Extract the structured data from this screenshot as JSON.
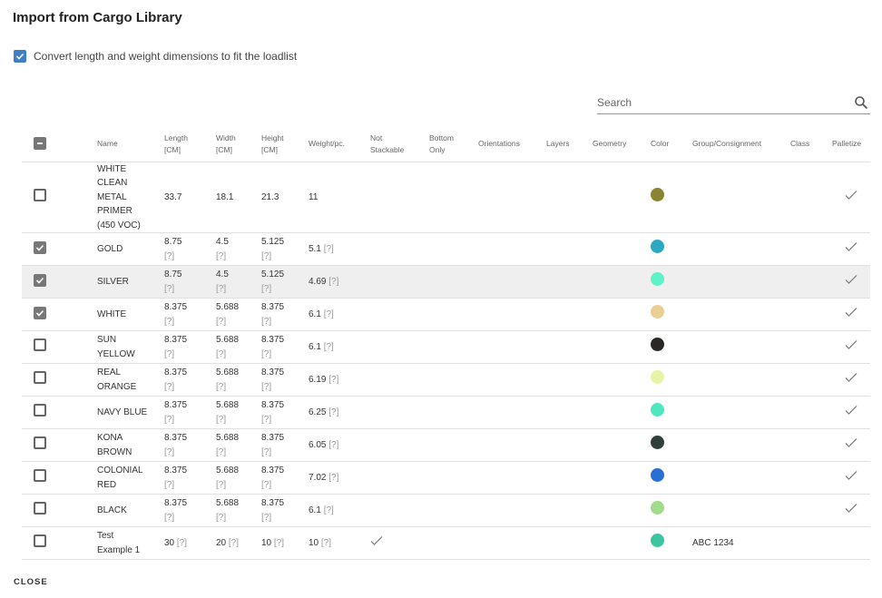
{
  "dialog": {
    "title": "Import from Cargo Library",
    "convert_label": "Convert length and weight dimensions to fit the loadlist",
    "convert_checked": true,
    "close_label": "CLOSE"
  },
  "search": {
    "placeholder": "Search",
    "icon": "search-icon"
  },
  "columns": [
    {
      "l1": "Name",
      "l2": ""
    },
    {
      "l1": "Length",
      "l2": "[CM]"
    },
    {
      "l1": "Width",
      "l2": "[CM]"
    },
    {
      "l1": "Height",
      "l2": "[CM]"
    },
    {
      "l1": "Weight/pc.",
      "l2": ""
    },
    {
      "l1": "Not",
      "l2": "Stackable"
    },
    {
      "l1": "Bottom",
      "l2": "Only"
    },
    {
      "l1": "Orientations",
      "l2": ""
    },
    {
      "l1": "Layers",
      "l2": ""
    },
    {
      "l1": "Geometry",
      "l2": ""
    },
    {
      "l1": "Color",
      "l2": ""
    },
    {
      "l1": "Group/Consignment",
      "l2": ""
    },
    {
      "l1": "Class",
      "l2": ""
    },
    {
      "l1": "Palletize",
      "l2": ""
    }
  ],
  "rows": [
    {
      "name": "WHITE CLEAN METAL PRIMER (450 VOC)",
      "length": "33.7",
      "width": "18.1",
      "height": "21.3",
      "weight": "11",
      "q": "",
      "checked": false,
      "not_stackable": false,
      "color": "#8a8433",
      "group": "",
      "palletize": true
    },
    {
      "name": "GOLD",
      "length": "8.75",
      "width": "4.5",
      "height": "5.125",
      "weight": "5.1",
      "q": "[?]",
      "checked": true,
      "not_stackable": false,
      "color": "#2aa8c4",
      "group": "",
      "palletize": true
    },
    {
      "name": "SILVER",
      "length": "8.75",
      "width": "4.5",
      "height": "5.125",
      "weight": "4.69",
      "q": "[?]",
      "checked": true,
      "not_stackable": false,
      "color": "#5ef2c8",
      "group": "",
      "palletize": true,
      "highlight": true
    },
    {
      "name": "WHITE",
      "length": "8.375",
      "width": "5.688",
      "height": "8.375",
      "weight": "6.1",
      "q": "[?]",
      "checked": true,
      "not_stackable": false,
      "color": "#e9cf94",
      "group": "",
      "palletize": true
    },
    {
      "name": "SUN YELLOW",
      "length": "8.375",
      "width": "5.688",
      "height": "8.375",
      "weight": "6.1",
      "q": "[?]",
      "checked": false,
      "not_stackable": false,
      "color": "#2a2626",
      "group": "",
      "palletize": true
    },
    {
      "name": "REAL ORANGE",
      "length": "8.375",
      "width": "5.688",
      "height": "8.375",
      "weight": "6.19",
      "q": "[?]",
      "checked": false,
      "not_stackable": false,
      "color": "#e6f5a5",
      "group": "",
      "palletize": true
    },
    {
      "name": "NAVY BLUE",
      "length": "8.375",
      "width": "5.688",
      "height": "8.375",
      "weight": "6.25",
      "q": "[?]",
      "checked": false,
      "not_stackable": false,
      "color": "#4de8c0",
      "group": "",
      "palletize": true
    },
    {
      "name": "KONA BROWN",
      "length": "8.375",
      "width": "5.688",
      "height": "8.375",
      "weight": "6.05",
      "q": "[?]",
      "checked": false,
      "not_stackable": false,
      "color": "#2f3f3a",
      "group": "",
      "palletize": true
    },
    {
      "name": "COLONIAL RED",
      "length": "8.375",
      "width": "5.688",
      "height": "8.375",
      "weight": "7.02",
      "q": "[?]",
      "checked": false,
      "not_stackable": false,
      "color": "#2a6fd6",
      "group": "",
      "palletize": true
    },
    {
      "name": "BLACK",
      "length": "8.375",
      "width": "5.688",
      "height": "8.375",
      "weight": "6.1",
      "q": "[?]",
      "checked": false,
      "not_stackable": false,
      "color": "#a0dc8c",
      "group": "",
      "palletize": true
    },
    {
      "name": "Test Example 1",
      "length": "30",
      "width": "20",
      "height": "10",
      "weight": "10",
      "q": "[?]",
      "inline_q": true,
      "checked": false,
      "not_stackable": true,
      "color": "#3cc6a0",
      "group": "ABC 1234",
      "palletize": false
    }
  ]
}
